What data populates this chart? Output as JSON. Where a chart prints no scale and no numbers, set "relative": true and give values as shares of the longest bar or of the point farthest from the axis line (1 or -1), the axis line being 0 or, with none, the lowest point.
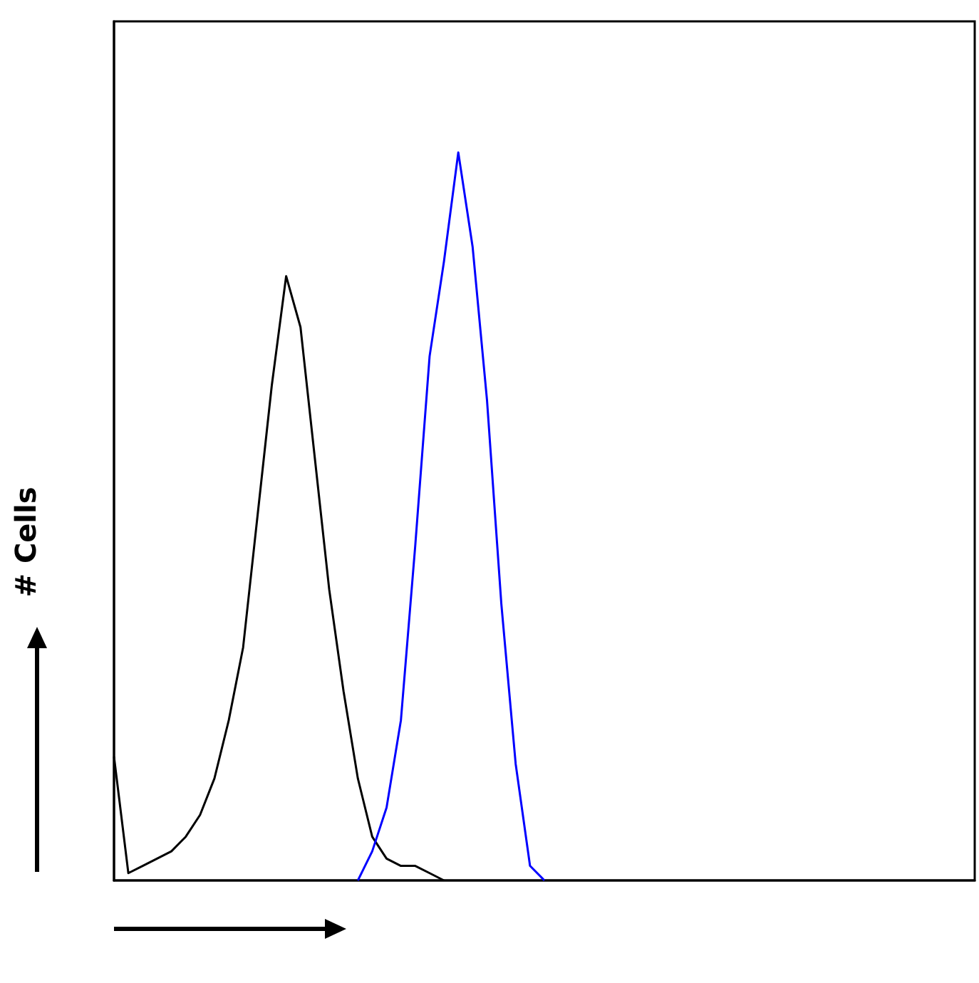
{
  "chart_data": {
    "type": "line",
    "ylabel": "# Cells",
    "relative": true,
    "marker": "none",
    "line_style": "solid",
    "categories": [
      null,
      null,
      null,
      null,
      null,
      null,
      null,
      null,
      null,
      null,
      null,
      null,
      null,
      null,
      null,
      null,
      null,
      null,
      null,
      null,
      null,
      null,
      null,
      null,
      null,
      null,
      null,
      null,
      null,
      null,
      null,
      null,
      null,
      null,
      null,
      null,
      null,
      null,
      null,
      null,
      null,
      null,
      null,
      null,
      null,
      null,
      null,
      null,
      null,
      null,
      null,
      null,
      null,
      null,
      null,
      null,
      null,
      null,
      null,
      null,
      null
    ],
    "series": [
      {
        "color": "#000000",
        "values": [
          0.17,
          0.01,
          0.02,
          0.03,
          0.04,
          0.06,
          0.09,
          0.14,
          0.22,
          0.32,
          0.5,
          0.68,
          0.83,
          0.76,
          0.58,
          0.4,
          0.26,
          0.14,
          0.06,
          0.03,
          0.02,
          0.02,
          0.01,
          0,
          null,
          null,
          null,
          null,
          null,
          null,
          null,
          null,
          null,
          null,
          null,
          null,
          null,
          null,
          null,
          null,
          null,
          null,
          null,
          null,
          null,
          null,
          null,
          null,
          null,
          null,
          null,
          null,
          null,
          null,
          null,
          null,
          null,
          null,
          null,
          null,
          null
        ]
      },
      {
        "color": "#0000ff",
        "values": [
          null,
          null,
          null,
          null,
          null,
          null,
          null,
          null,
          null,
          null,
          null,
          null,
          null,
          null,
          null,
          null,
          null,
          0,
          0.04,
          0.1,
          0.22,
          0.46,
          0.72,
          0.85,
          1,
          0.87,
          0.66,
          0.38,
          0.16,
          0.02,
          0,
          null,
          null,
          null,
          null,
          null,
          null,
          null,
          null,
          null,
          null,
          null,
          null,
          null,
          null,
          null,
          null,
          null,
          null,
          null,
          null,
          null,
          null,
          null,
          null,
          null,
          null,
          null,
          null,
          null,
          null
        ]
      }
    ]
  }
}
